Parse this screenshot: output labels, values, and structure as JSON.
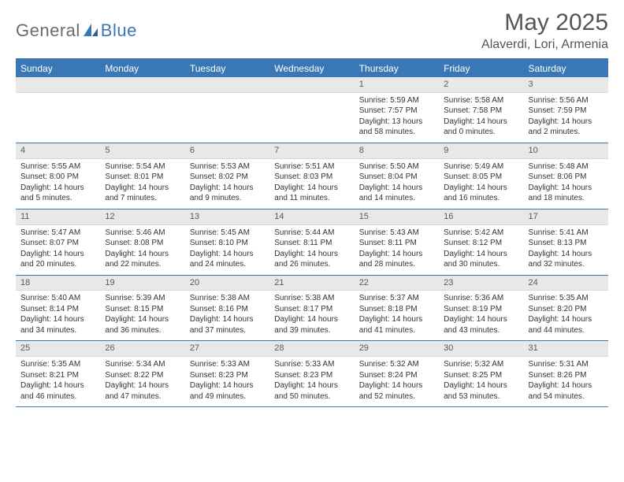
{
  "brand": {
    "general": "General",
    "blue": "Blue"
  },
  "header": {
    "monthTitle": "May 2025",
    "location": "Alaverdi, Lori, Armenia"
  },
  "colors": {
    "accent": "#3a78b5",
    "headerText": "#ffffff",
    "dateStrip": "#e8e8e8",
    "bodyText": "#333333",
    "logoGray": "#6b6b6b"
  },
  "dayNames": [
    "Sunday",
    "Monday",
    "Tuesday",
    "Wednesday",
    "Thursday",
    "Friday",
    "Saturday"
  ],
  "weeks": [
    [
      {
        "empty": true
      },
      {
        "empty": true
      },
      {
        "empty": true
      },
      {
        "empty": true
      },
      {
        "date": "1",
        "sunrise": "Sunrise: 5:59 AM",
        "sunset": "Sunset: 7:57 PM",
        "daylight1": "Daylight: 13 hours",
        "daylight2": "and 58 minutes."
      },
      {
        "date": "2",
        "sunrise": "Sunrise: 5:58 AM",
        "sunset": "Sunset: 7:58 PM",
        "daylight1": "Daylight: 14 hours",
        "daylight2": "and 0 minutes."
      },
      {
        "date": "3",
        "sunrise": "Sunrise: 5:56 AM",
        "sunset": "Sunset: 7:59 PM",
        "daylight1": "Daylight: 14 hours",
        "daylight2": "and 2 minutes."
      }
    ],
    [
      {
        "date": "4",
        "sunrise": "Sunrise: 5:55 AM",
        "sunset": "Sunset: 8:00 PM",
        "daylight1": "Daylight: 14 hours",
        "daylight2": "and 5 minutes."
      },
      {
        "date": "5",
        "sunrise": "Sunrise: 5:54 AM",
        "sunset": "Sunset: 8:01 PM",
        "daylight1": "Daylight: 14 hours",
        "daylight2": "and 7 minutes."
      },
      {
        "date": "6",
        "sunrise": "Sunrise: 5:53 AM",
        "sunset": "Sunset: 8:02 PM",
        "daylight1": "Daylight: 14 hours",
        "daylight2": "and 9 minutes."
      },
      {
        "date": "7",
        "sunrise": "Sunrise: 5:51 AM",
        "sunset": "Sunset: 8:03 PM",
        "daylight1": "Daylight: 14 hours",
        "daylight2": "and 11 minutes."
      },
      {
        "date": "8",
        "sunrise": "Sunrise: 5:50 AM",
        "sunset": "Sunset: 8:04 PM",
        "daylight1": "Daylight: 14 hours",
        "daylight2": "and 14 minutes."
      },
      {
        "date": "9",
        "sunrise": "Sunrise: 5:49 AM",
        "sunset": "Sunset: 8:05 PM",
        "daylight1": "Daylight: 14 hours",
        "daylight2": "and 16 minutes."
      },
      {
        "date": "10",
        "sunrise": "Sunrise: 5:48 AM",
        "sunset": "Sunset: 8:06 PM",
        "daylight1": "Daylight: 14 hours",
        "daylight2": "and 18 minutes."
      }
    ],
    [
      {
        "date": "11",
        "sunrise": "Sunrise: 5:47 AM",
        "sunset": "Sunset: 8:07 PM",
        "daylight1": "Daylight: 14 hours",
        "daylight2": "and 20 minutes."
      },
      {
        "date": "12",
        "sunrise": "Sunrise: 5:46 AM",
        "sunset": "Sunset: 8:08 PM",
        "daylight1": "Daylight: 14 hours",
        "daylight2": "and 22 minutes."
      },
      {
        "date": "13",
        "sunrise": "Sunrise: 5:45 AM",
        "sunset": "Sunset: 8:10 PM",
        "daylight1": "Daylight: 14 hours",
        "daylight2": "and 24 minutes."
      },
      {
        "date": "14",
        "sunrise": "Sunrise: 5:44 AM",
        "sunset": "Sunset: 8:11 PM",
        "daylight1": "Daylight: 14 hours",
        "daylight2": "and 26 minutes."
      },
      {
        "date": "15",
        "sunrise": "Sunrise: 5:43 AM",
        "sunset": "Sunset: 8:11 PM",
        "daylight1": "Daylight: 14 hours",
        "daylight2": "and 28 minutes."
      },
      {
        "date": "16",
        "sunrise": "Sunrise: 5:42 AM",
        "sunset": "Sunset: 8:12 PM",
        "daylight1": "Daylight: 14 hours",
        "daylight2": "and 30 minutes."
      },
      {
        "date": "17",
        "sunrise": "Sunrise: 5:41 AM",
        "sunset": "Sunset: 8:13 PM",
        "daylight1": "Daylight: 14 hours",
        "daylight2": "and 32 minutes."
      }
    ],
    [
      {
        "date": "18",
        "sunrise": "Sunrise: 5:40 AM",
        "sunset": "Sunset: 8:14 PM",
        "daylight1": "Daylight: 14 hours",
        "daylight2": "and 34 minutes."
      },
      {
        "date": "19",
        "sunrise": "Sunrise: 5:39 AM",
        "sunset": "Sunset: 8:15 PM",
        "daylight1": "Daylight: 14 hours",
        "daylight2": "and 36 minutes."
      },
      {
        "date": "20",
        "sunrise": "Sunrise: 5:38 AM",
        "sunset": "Sunset: 8:16 PM",
        "daylight1": "Daylight: 14 hours",
        "daylight2": "and 37 minutes."
      },
      {
        "date": "21",
        "sunrise": "Sunrise: 5:38 AM",
        "sunset": "Sunset: 8:17 PM",
        "daylight1": "Daylight: 14 hours",
        "daylight2": "and 39 minutes."
      },
      {
        "date": "22",
        "sunrise": "Sunrise: 5:37 AM",
        "sunset": "Sunset: 8:18 PM",
        "daylight1": "Daylight: 14 hours",
        "daylight2": "and 41 minutes."
      },
      {
        "date": "23",
        "sunrise": "Sunrise: 5:36 AM",
        "sunset": "Sunset: 8:19 PM",
        "daylight1": "Daylight: 14 hours",
        "daylight2": "and 43 minutes."
      },
      {
        "date": "24",
        "sunrise": "Sunrise: 5:35 AM",
        "sunset": "Sunset: 8:20 PM",
        "daylight1": "Daylight: 14 hours",
        "daylight2": "and 44 minutes."
      }
    ],
    [
      {
        "date": "25",
        "sunrise": "Sunrise: 5:35 AM",
        "sunset": "Sunset: 8:21 PM",
        "daylight1": "Daylight: 14 hours",
        "daylight2": "and 46 minutes."
      },
      {
        "date": "26",
        "sunrise": "Sunrise: 5:34 AM",
        "sunset": "Sunset: 8:22 PM",
        "daylight1": "Daylight: 14 hours",
        "daylight2": "and 47 minutes."
      },
      {
        "date": "27",
        "sunrise": "Sunrise: 5:33 AM",
        "sunset": "Sunset: 8:23 PM",
        "daylight1": "Daylight: 14 hours",
        "daylight2": "and 49 minutes."
      },
      {
        "date": "28",
        "sunrise": "Sunrise: 5:33 AM",
        "sunset": "Sunset: 8:23 PM",
        "daylight1": "Daylight: 14 hours",
        "daylight2": "and 50 minutes."
      },
      {
        "date": "29",
        "sunrise": "Sunrise: 5:32 AM",
        "sunset": "Sunset: 8:24 PM",
        "daylight1": "Daylight: 14 hours",
        "daylight2": "and 52 minutes."
      },
      {
        "date": "30",
        "sunrise": "Sunrise: 5:32 AM",
        "sunset": "Sunset: 8:25 PM",
        "daylight1": "Daylight: 14 hours",
        "daylight2": "and 53 minutes."
      },
      {
        "date": "31",
        "sunrise": "Sunrise: 5:31 AM",
        "sunset": "Sunset: 8:26 PM",
        "daylight1": "Daylight: 14 hours",
        "daylight2": "and 54 minutes."
      }
    ]
  ]
}
